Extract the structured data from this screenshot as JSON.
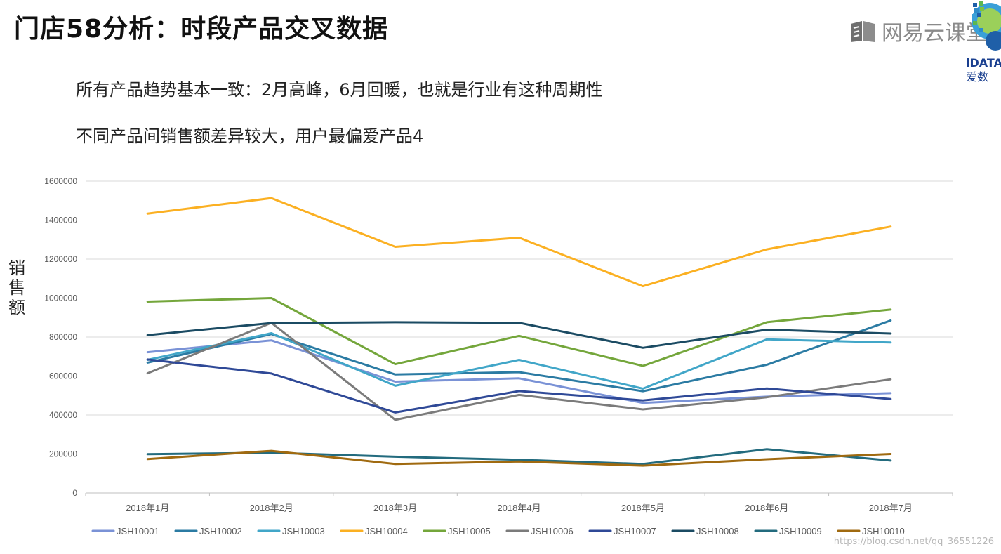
{
  "header": {
    "title": "门店58分析：时段产品交叉数据",
    "brand": "网易云课堂",
    "corner_logo": "iDATA",
    "corner_logo_sub": "爱数"
  },
  "bullets": [
    "所有产品趋势基本一致：2月高峰，6月回暖，也就是行业有这种周期性",
    "不同产品间销售额差异较大，用户最偏爱产品4"
  ],
  "watermark": "https://blog.csdn.net/qq_36551226",
  "chart_data": {
    "type": "line",
    "title": "",
    "xlabel": "",
    "ylabel": "销售额",
    "ylim": [
      0,
      1600000
    ],
    "yticks": [
      0,
      200000,
      400000,
      600000,
      800000,
      1000000,
      1200000,
      1400000,
      1600000
    ],
    "grid": true,
    "legend_position": "bottom",
    "categories": [
      "2018年1月",
      "2018年2月",
      "2018年3月",
      "2018年4月",
      "2018年5月",
      "2018年6月",
      "2018年7月"
    ],
    "series": [
      {
        "name": "JSH10001",
        "color": "#7a92d6",
        "values": [
          722000,
          783000,
          571000,
          588000,
          462000,
          494000,
          512000
        ]
      },
      {
        "name": "JSH10002",
        "color": "#2b7ba3",
        "values": [
          669000,
          815000,
          608000,
          620000,
          522000,
          658000,
          885000
        ]
      },
      {
        "name": "JSH10003",
        "color": "#41a6c8",
        "values": [
          683000,
          820000,
          550000,
          683000,
          535000,
          788000,
          772000
        ]
      },
      {
        "name": "JSH10004",
        "color": "#fbb022",
        "values": [
          1433000,
          1513000,
          1263000,
          1310000,
          1061000,
          1250000,
          1367000
        ]
      },
      {
        "name": "JSH10005",
        "color": "#74a63b",
        "values": [
          982000,
          1000000,
          661000,
          806000,
          652000,
          876000,
          941000
        ]
      },
      {
        "name": "JSH10006",
        "color": "#7b7b7b",
        "values": [
          614000,
          873000,
          375000,
          503000,
          429000,
          491000,
          583000
        ]
      },
      {
        "name": "JSH10007",
        "color": "#2f4997",
        "values": [
          685000,
          613000,
          413000,
          523000,
          475000,
          536000,
          482000
        ]
      },
      {
        "name": "JSH10008",
        "color": "#1b4b63",
        "values": [
          810000,
          872000,
          876000,
          873000,
          745000,
          838000,
          818000
        ]
      },
      {
        "name": "JSH10009",
        "color": "#236b7e",
        "values": [
          199000,
          206000,
          186000,
          170000,
          149000,
          224000,
          166000
        ]
      },
      {
        "name": "JSH10010",
        "color": "#a06a10",
        "values": [
          174000,
          216000,
          149000,
          161000,
          140000,
          173000,
          200000
        ]
      }
    ]
  }
}
